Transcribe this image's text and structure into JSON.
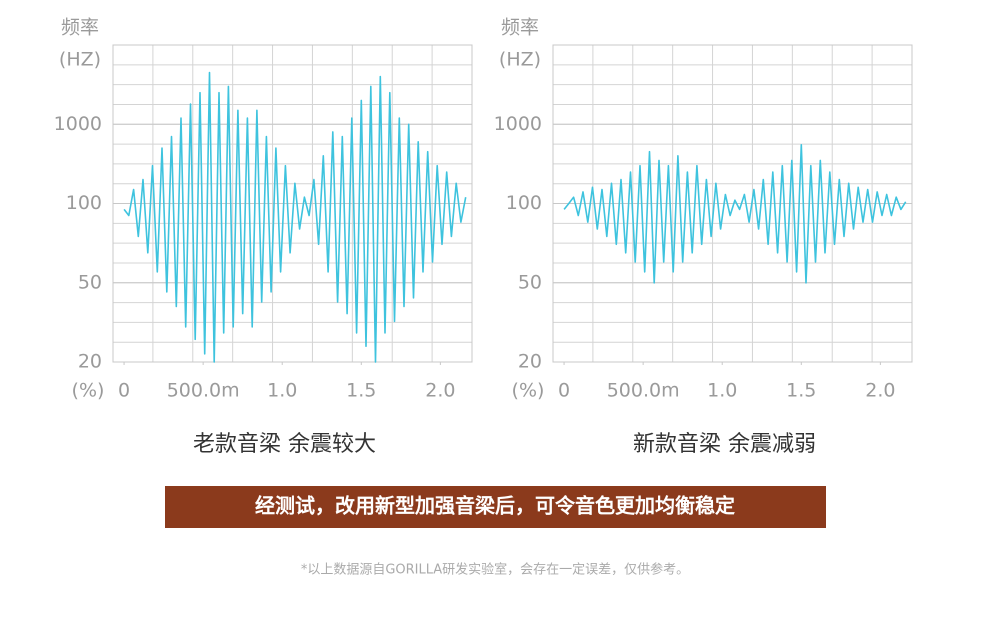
{
  "chart_data": [
    {
      "type": "line",
      "title": "老款音梁 余震较大",
      "ylabel": "频率",
      "yunit": "(HZ)",
      "xunit": "(%)",
      "color": "#3ec3de",
      "grid": true,
      "x": [
        0,
        0.03,
        0.06,
        0.09,
        0.12,
        0.15,
        0.18,
        0.21,
        0.24,
        0.27,
        0.3,
        0.33,
        0.36,
        0.39,
        0.42,
        0.45,
        0.48,
        0.51,
        0.54,
        0.57,
        0.6,
        0.63,
        0.66,
        0.69,
        0.72,
        0.75,
        0.78,
        0.81,
        0.84,
        0.87,
        0.9,
        0.93,
        0.96,
        0.99,
        1.02,
        1.05,
        1.08,
        1.11,
        1.14,
        1.17,
        1.2,
        1.23,
        1.26,
        1.29,
        1.32,
        1.35,
        1.38,
        1.41,
        1.44,
        1.47,
        1.5,
        1.53,
        1.56,
        1.59,
        1.62,
        1.65,
        1.68,
        1.71,
        1.74,
        1.77,
        1.8,
        1.83,
        1.86,
        1.89,
        1.92,
        1.95,
        1.98,
        2.01,
        2.04,
        2.07,
        2.1,
        2.13,
        2.16
      ],
      "values": [
        95,
        90,
        150,
        75,
        200,
        65,
        300,
        55,
        500,
        45,
        700,
        38,
        1200,
        30,
        1800,
        26,
        2500,
        22,
        4500,
        20,
        2500,
        28,
        3000,
        30,
        1500,
        35,
        1200,
        30,
        1500,
        40,
        700,
        45,
        500,
        55,
        300,
        65,
        180,
        80,
        120,
        90,
        200,
        70,
        400,
        55,
        800,
        40,
        700,
        35,
        1200,
        28,
        2000,
        24,
        3000,
        20,
        4000,
        28,
        2500,
        32,
        1200,
        38,
        1000,
        42,
        600,
        55,
        450,
        60,
        300,
        70,
        250,
        75,
        180,
        85,
        120
      ],
      "xlim": [
        -0.07,
        2.2
      ],
      "xticks": [
        0,
        {
          "value": 0.5,
          "label": "500.0m"
        },
        {
          "value": 1,
          "label": "1.0"
        },
        1.5,
        {
          "value": 2,
          "label": "2.0"
        }
      ],
      "ylim": [
        20,
        10000
      ],
      "yticks": [
        20,
        50,
        100,
        1000
      ]
    },
    {
      "type": "line",
      "title": "新款音梁 余震减弱",
      "ylabel": "频率",
      "yunit": "(HZ)",
      "xunit": "(%)",
      "color": "#3ec3de",
      "grid": true,
      "x": [
        0,
        0.03,
        0.06,
        0.09,
        0.12,
        0.15,
        0.18,
        0.21,
        0.24,
        0.27,
        0.3,
        0.33,
        0.36,
        0.39,
        0.42,
        0.45,
        0.48,
        0.51,
        0.54,
        0.57,
        0.6,
        0.63,
        0.66,
        0.69,
        0.72,
        0.75,
        0.78,
        0.81,
        0.84,
        0.87,
        0.9,
        0.93,
        0.96,
        0.99,
        1.02,
        1.05,
        1.08,
        1.11,
        1.14,
        1.17,
        1.2,
        1.23,
        1.26,
        1.29,
        1.32,
        1.35,
        1.38,
        1.41,
        1.44,
        1.47,
        1.5,
        1.53,
        1.56,
        1.59,
        1.62,
        1.65,
        1.68,
        1.71,
        1.74,
        1.77,
        1.8,
        1.83,
        1.86,
        1.89,
        1.92,
        1.95,
        1.98,
        2.01,
        2.04,
        2.07,
        2.1,
        2.13,
        2.16
      ],
      "values": [
        95,
        100,
        120,
        90,
        140,
        85,
        160,
        80,
        150,
        75,
        180,
        70,
        200,
        65,
        250,
        60,
        300,
        55,
        450,
        50,
        350,
        60,
        300,
        55,
        400,
        60,
        250,
        65,
        300,
        70,
        200,
        75,
        180,
        80,
        130,
        90,
        110,
        95,
        130,
        85,
        150,
        80,
        200,
        70,
        250,
        65,
        300,
        60,
        350,
        55,
        550,
        50,
        300,
        60,
        350,
        65,
        250,
        70,
        200,
        75,
        180,
        80,
        160,
        85,
        150,
        85,
        140,
        90,
        130,
        90,
        120,
        95,
        105
      ],
      "xlim": [
        -0.07,
        2.2
      ],
      "xticks": [
        0,
        {
          "value": 0.5,
          "label": "500.0m"
        },
        {
          "value": 1,
          "label": "1.0"
        },
        1.5,
        {
          "value": 2,
          "label": "2.0"
        }
      ],
      "ylim": [
        20,
        10000
      ],
      "yticks": [
        20,
        50,
        100,
        1000
      ]
    }
  ],
  "banner": "经测试，改用新型加强音梁后，可令音色更加均衡稳定",
  "footnote": "*以上数据源自GORILLA研发实验室，会存在一定误差，仅供参考。"
}
